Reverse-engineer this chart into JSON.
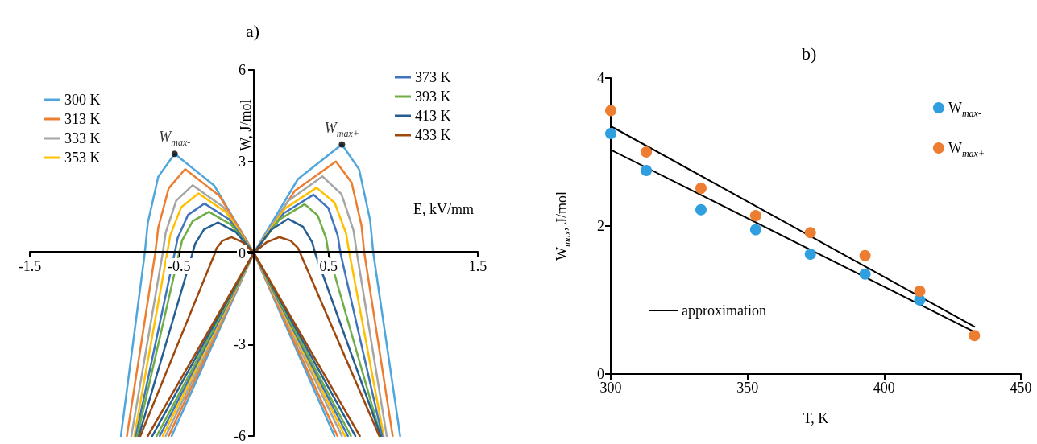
{
  "chart_data": [
    {
      "type": "line",
      "title": "a)",
      "xlabel": "E, kV/mm",
      "ylabel": "W, J/mol",
      "xlim": [
        -1.5,
        1.5
      ],
      "xticks": [
        -1.5,
        -0.5,
        0.5,
        1.5
      ],
      "ylim": [
        -6,
        6
      ],
      "yticks": [
        -6,
        -3,
        0,
        3,
        6
      ],
      "grid": false,
      "legend": "top",
      "annotations": [
        {
          "text": "W$_{max-}$",
          "x": -0.53,
          "y": 3.25
        },
        {
          "text": "W$_{max+}$",
          "x": 0.59,
          "y": 3.56
        }
      ],
      "series": [
        {
          "name": "300 K",
          "color": "#4ea6dc",
          "x": [
            -0.55,
            0,
            0.295,
            0.59,
            0.705,
            0.779,
            0.8,
            0.98
          ],
          "values": [
            -6,
            0,
            2.42,
            3.56,
            2.74,
            1.07,
            0,
            -6
          ]
        },
        {
          "name": "313 K",
          "color": "#ed7d31",
          "x": [
            -0.57,
            0,
            0.275,
            0.55,
            0.655,
            0.721,
            0.74,
            0.93
          ],
          "values": [
            -6,
            0,
            2.04,
            3.0,
            2.31,
            0.9,
            0,
            -6
          ]
        },
        {
          "name": "333 K",
          "color": "#a5a5a5",
          "x": [
            -0.59,
            0,
            0.23,
            0.46,
            0.587,
            0.667,
            0.69,
            0.89
          ],
          "values": [
            -6,
            0,
            1.71,
            2.51,
            1.93,
            0.75,
            0,
            -6
          ]
        },
        {
          "name": "353 K",
          "color": "#ffc000",
          "x": [
            -0.61,
            0,
            0.21,
            0.42,
            0.541,
            0.618,
            0.64,
            0.87
          ],
          "values": [
            -6,
            0,
            1.46,
            2.14,
            1.65,
            0.64,
            0,
            -6
          ]
        },
        {
          "name": "373 K",
          "color": "#3f75bd",
          "x": [
            -0.63,
            0,
            0.2,
            0.4,
            0.499,
            0.562,
            0.58,
            0.86
          ],
          "values": [
            -6,
            0,
            1.3,
            1.91,
            1.47,
            0.57,
            0,
            -6
          ]
        },
        {
          "name": "393 K",
          "color": "#70ad47",
          "x": [
            -0.65,
            0,
            0.17,
            0.34,
            0.428,
            0.484,
            0.5,
            0.85
          ],
          "values": [
            -6,
            0,
            1.09,
            1.6,
            1.23,
            0.48,
            0,
            -6
          ]
        },
        {
          "name": "413 K",
          "color": "#255e91",
          "x": [
            -0.68,
            0,
            0.115,
            0.23,
            0.329,
            0.392,
            0.41,
            0.85
          ],
          "values": [
            -6,
            0,
            0.76,
            1.12,
            0.86,
            0.34,
            0,
            -6
          ]
        },
        {
          "name": "433 K",
          "color": "#9e480e",
          "x": [
            -0.71,
            0,
            0.085,
            0.17,
            0.247,
            0.296,
            0.31,
            0.84
          ],
          "values": [
            -6,
            0,
            0.35,
            0.52,
            0.4,
            0.16,
            0,
            -6
          ]
        },
        {
          "color": "#4ea6dc",
          "x": [
            0.54,
            0,
            -0.265,
            -0.53,
            -0.64,
            -0.71,
            -0.73,
            -0.89
          ],
          "values": [
            -6,
            0,
            2.21,
            3.25,
            2.5,
            0.98,
            0,
            -6
          ]
        },
        {
          "color": "#ed7d31",
          "x": [
            0.56,
            0,
            -0.23,
            -0.46,
            -0.57,
            -0.64,
            -0.66,
            -0.85
          ],
          "values": [
            -6,
            0,
            1.87,
            2.75,
            2.12,
            0.83,
            0,
            -6
          ]
        },
        {
          "color": "#a5a5a5",
          "x": [
            0.59,
            0,
            -0.205,
            -0.41,
            -0.52,
            -0.59,
            -0.61,
            -0.82
          ],
          "values": [
            -6,
            0,
            1.51,
            2.22,
            1.71,
            0.67,
            0,
            -6
          ]
        },
        {
          "color": "#ffc000",
          "x": [
            0.61,
            0,
            -0.185,
            -0.37,
            -0.486,
            -0.559,
            -0.58,
            -0.8
          ],
          "values": [
            -6,
            0,
            1.33,
            1.95,
            1.5,
            0.59,
            0,
            -6
          ]
        },
        {
          "color": "#3f75bd",
          "x": [
            0.63,
            0,
            -0.165,
            -0.33,
            -0.44,
            -0.51,
            -0.53,
            -0.79
          ],
          "values": [
            -6,
            0,
            1.1,
            1.62,
            1.25,
            0.49,
            0,
            -6
          ]
        },
        {
          "color": "#70ad47",
          "x": [
            0.65,
            0,
            -0.15,
            -0.3,
            -0.41,
            -0.48,
            -0.5,
            -0.78
          ],
          "values": [
            -6,
            0,
            0.92,
            1.35,
            1.04,
            0.41,
            0,
            -6
          ]
        },
        {
          "color": "#255e91",
          "x": [
            0.68,
            0,
            -0.12,
            -0.24,
            -0.334,
            -0.393,
            -0.41,
            -0.77
          ],
          "values": [
            -6,
            0,
            0.68,
            1.0,
            0.77,
            0.3,
            0,
            -6
          ]
        },
        {
          "color": "#9e480e",
          "x": [
            0.71,
            0,
            -0.075,
            -0.15,
            -0.21,
            -0.249,
            -0.26,
            -0.76
          ],
          "values": [
            -6,
            0,
            0.35,
            0.52,
            0.4,
            0.16,
            0,
            -6
          ]
        }
      ]
    },
    {
      "type": "scatter",
      "title": "b)",
      "xlabel": "T, K",
      "ylabel": "W$_{max}$, J/mol",
      "xlim": [
        300,
        450
      ],
      "xticks": [
        300,
        350,
        400,
        450
      ],
      "ylim": [
        0,
        4
      ],
      "yticks": [
        0,
        2,
        4
      ],
      "grid": false,
      "legend": "top right",
      "x": [
        300,
        313,
        333,
        353,
        373,
        393,
        413,
        433
      ],
      "series": [
        {
          "name": "W$_{max-}$",
          "color": "#2f9fe0",
          "values": [
            3.25,
            2.75,
            2.22,
            1.95,
            1.62,
            1.35,
            1.0,
            null
          ]
        },
        {
          "name": "W$_{max+}$",
          "color": "#ed7d31",
          "values": [
            3.56,
            3.0,
            2.51,
            2.14,
            1.91,
            1.6,
            1.12,
            0.52
          ]
        },
        {
          "name": "approximation",
          "type": "line",
          "color": "#000000",
          "x": [
            300,
            433
          ],
          "values": [
            3.35,
            0.64
          ]
        },
        {
          "type": "line",
          "color": "#000000",
          "x": [
            300,
            433
          ],
          "values": [
            3.03,
            0.57
          ]
        }
      ]
    }
  ]
}
